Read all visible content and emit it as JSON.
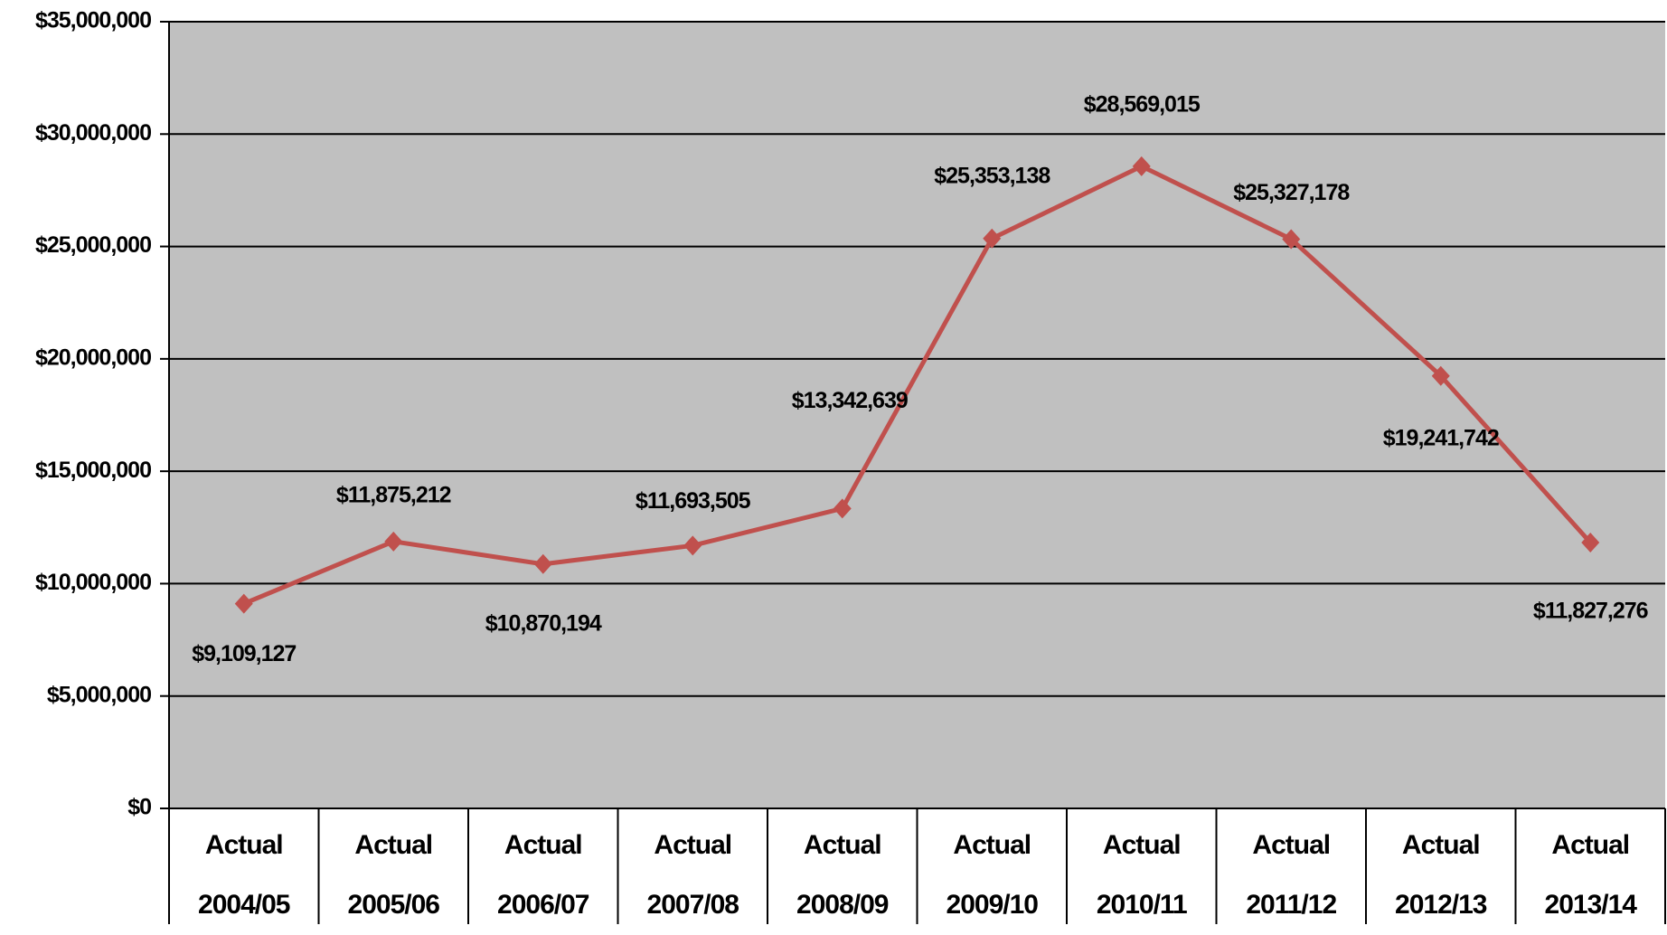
{
  "chart_data": {
    "type": "line",
    "categories": [
      "Actual 2004/05",
      "Actual 2005/06",
      "Actual 2006/07",
      "Actual 2007/08",
      "Actual 2008/09",
      "Actual 2009/10",
      "Actual 2010/11",
      "Actual 2011/12",
      "Actual 2012/13",
      "Actual 2013/14"
    ],
    "series": [
      {
        "color": "#c0504d",
        "values": [
          9109127,
          11875212,
          10870194,
          11693505,
          13342639,
          25353138,
          28569015,
          25327178,
          19241742,
          11827276
        ],
        "value_labels": [
          "$9,109,127",
          "$11,875,212",
          "$10,870,194",
          "$11,693,505",
          "$13,342,639",
          "$25,353,138",
          "$28,569,015",
          "$25,327,178",
          "$19,241,742",
          "$11,827,276"
        ]
      }
    ],
    "ylim": [
      0,
      35000000
    ],
    "yticks": [
      {
        "value": 0,
        "label": "$0"
      },
      {
        "value": 5000000,
        "label": "$5,000,000"
      },
      {
        "value": 10000000,
        "label": "$10,000,000"
      },
      {
        "value": 15000000,
        "label": "$15,000,000"
      },
      {
        "value": 20000000,
        "label": "$20,000,000"
      },
      {
        "value": 25000000,
        "label": "$25,000,000"
      },
      {
        "value": 30000000,
        "label": "$30,000,000"
      },
      {
        "value": 35000000,
        "label": "$35,000,000"
      }
    ],
    "grid": true,
    "plot_background": "#c0c0c0"
  }
}
